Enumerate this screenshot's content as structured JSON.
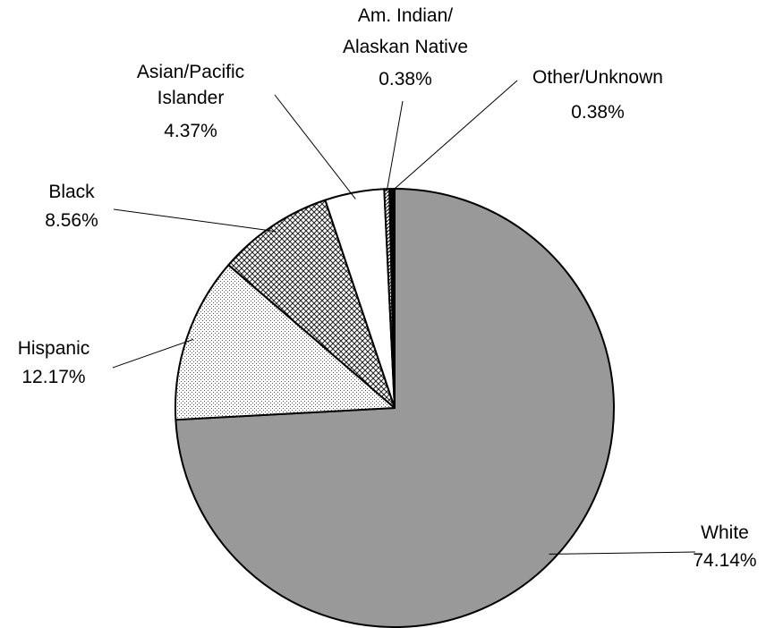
{
  "chart_data": {
    "type": "pie",
    "title": "",
    "legend": "none",
    "slices": [
      {
        "key": "white",
        "label": "White",
        "percent_label": "74.14%",
        "value": 74.14,
        "color": "#999999",
        "pattern": "solid"
      },
      {
        "key": "hispanic",
        "label": "Hispanic",
        "percent_label": "12.17%",
        "value": 12.17,
        "color": "#ffffff",
        "pattern": "fine-dots"
      },
      {
        "key": "black",
        "label": "Black",
        "percent_label": "8.56%",
        "value": 8.56,
        "color": "#ffffff",
        "pattern": "crosshatch"
      },
      {
        "key": "asian",
        "label": "Asian/Pacific Islander",
        "percent_label": "4.37%",
        "value": 4.37,
        "color": "#ffffff",
        "pattern": "none"
      },
      {
        "key": "amindian",
        "label": "Am. Indian/ Alaskan Native",
        "percent_label": "0.38%",
        "value": 0.38,
        "color": "#ffffff",
        "pattern": "diagonal"
      },
      {
        "key": "other",
        "label": "Other/Unknown",
        "percent_label": "0.38%",
        "value": 0.38,
        "color": "#000000",
        "pattern": "solid"
      }
    ]
  }
}
